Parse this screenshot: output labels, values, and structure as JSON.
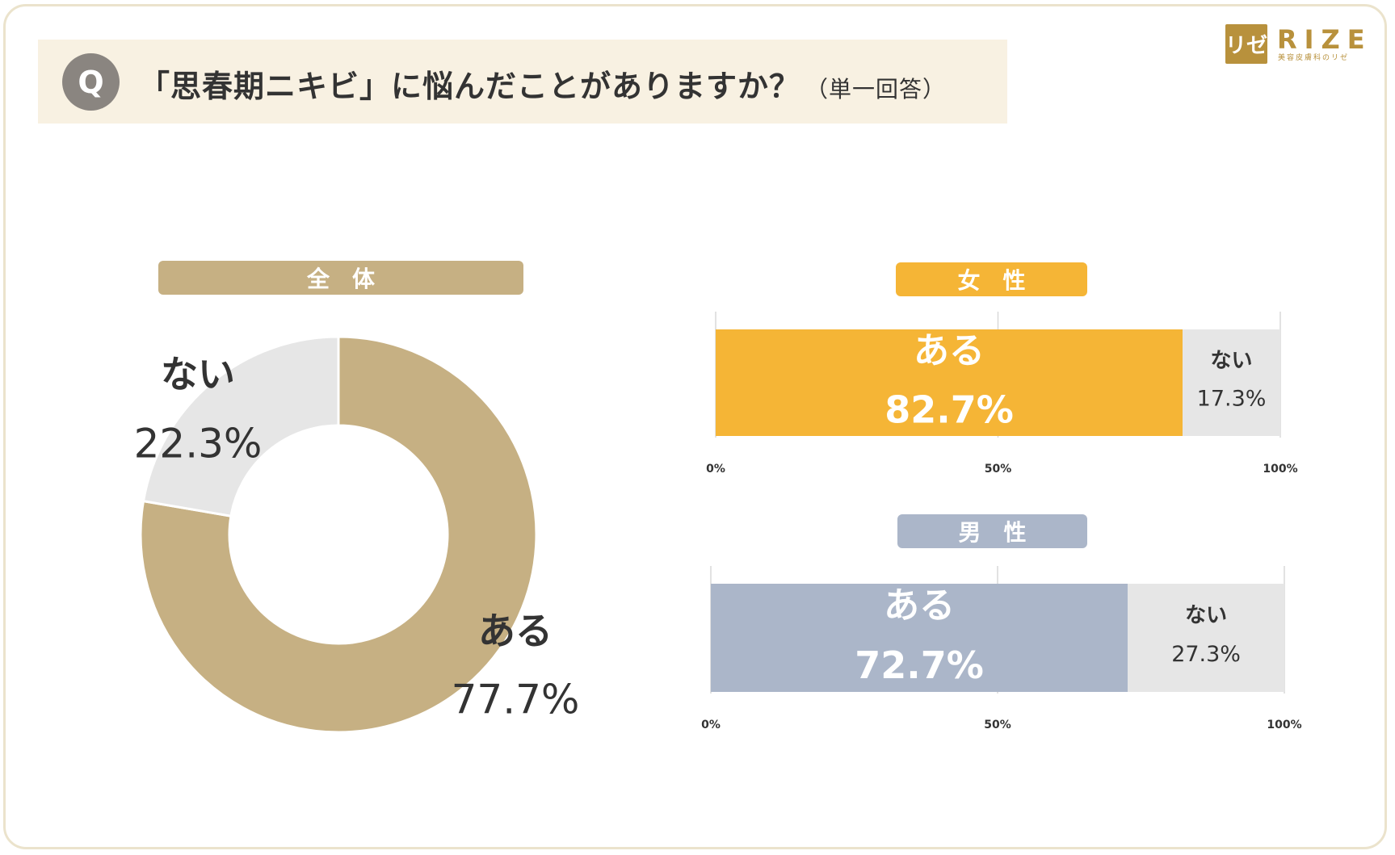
{
  "question": {
    "badge": "Q",
    "text": "「思春期ニキビ」に悩んだことがありますか？",
    "note": "（単一回答）"
  },
  "brand": {
    "mark": "リゼ",
    "name": "RIZE",
    "tagline": "美容皮膚科のリゼ"
  },
  "colors": {
    "overall": "#c6b083",
    "female": "#f5b536",
    "male": "#abb6c9",
    "none": "#e6e6e6"
  },
  "chart_data": [
    {
      "type": "pie",
      "title": "全体",
      "categories": [
        "ある",
        "ない"
      ],
      "values": [
        77.7,
        22.3
      ],
      "value_labels": [
        "77.7%",
        "22.3%"
      ]
    },
    {
      "type": "bar",
      "orientation": "horizontal-stacked",
      "title": "女性",
      "categories": [
        "ある",
        "ない"
      ],
      "values": [
        82.7,
        17.3
      ],
      "value_labels": [
        "82.7%",
        "17.3%"
      ],
      "xlim": [
        0,
        100
      ],
      "ticks": [
        "0%",
        "50%",
        "100%"
      ]
    },
    {
      "type": "bar",
      "orientation": "horizontal-stacked",
      "title": "男性",
      "categories": [
        "ある",
        "ない"
      ],
      "values": [
        72.7,
        27.3
      ],
      "value_labels": [
        "72.7%",
        "27.3%"
      ],
      "xlim": [
        0,
        100
      ],
      "ticks": [
        "0%",
        "50%",
        "100%"
      ]
    }
  ]
}
